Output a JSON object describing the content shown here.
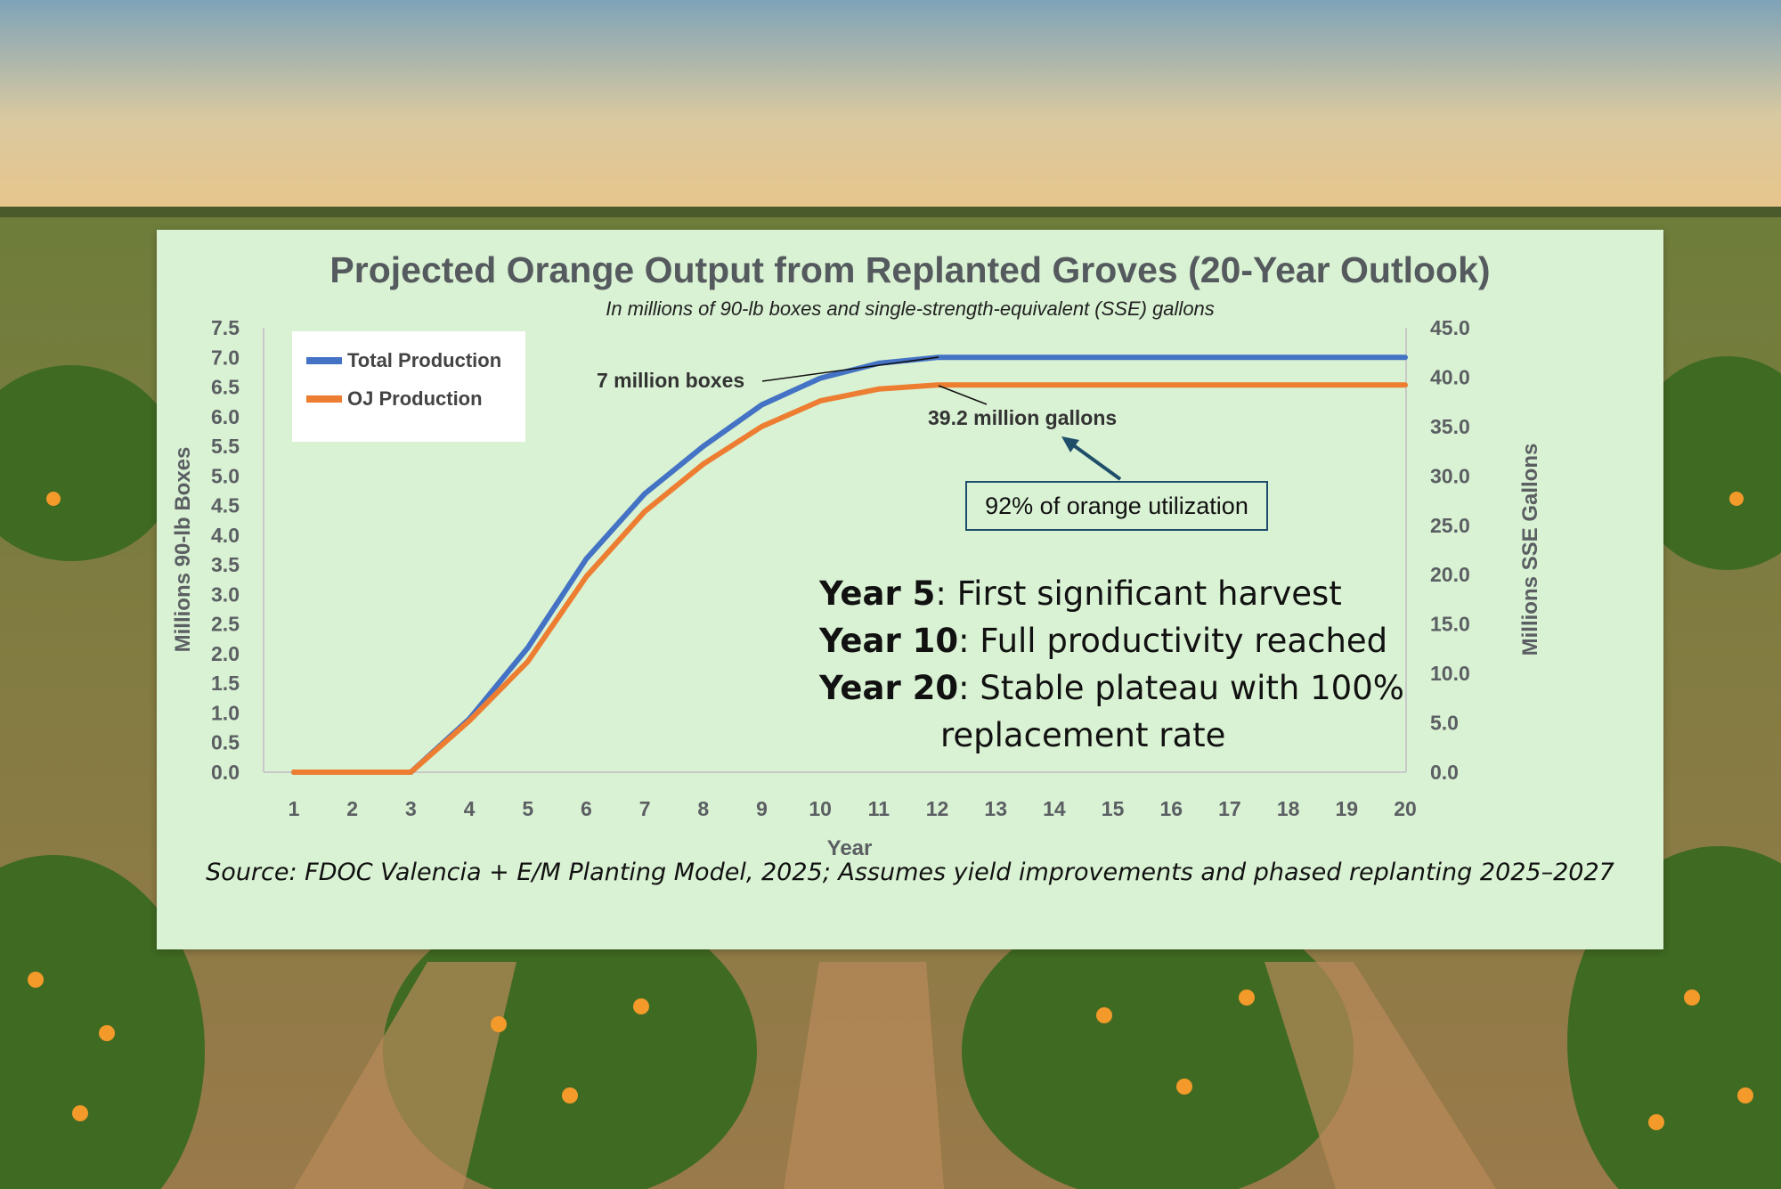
{
  "colors": {
    "total": "#4472c4",
    "oj": "#ed7d31",
    "panel": "#d9f2d3",
    "axis_text": "#5b5f63",
    "annotation_border": "#1f4e6b"
  },
  "chart_data": {
    "type": "line",
    "title": "Projected Orange Output from Replanted Groves (20-Year Outlook)",
    "subtitle": "In millions of 90-lb boxes and single-strength-equivalent (SSE) gallons",
    "xlabel": "Year",
    "ylabel_left": "Millions 90-lb Boxes",
    "ylabel_right": "Millions SSE Gallons",
    "categories": [
      1,
      2,
      3,
      4,
      5,
      6,
      7,
      8,
      9,
      10,
      11,
      12,
      13,
      14,
      15,
      16,
      17,
      18,
      19,
      20
    ],
    "ylim_left": [
      0,
      7.5
    ],
    "ylim_right": [
      0,
      45
    ],
    "yticks_left": [
      "0.0",
      "0.5",
      "1.0",
      "1.5",
      "2.0",
      "2.5",
      "3.0",
      "3.5",
      "4.0",
      "4.5",
      "5.0",
      "5.5",
      "6.0",
      "6.5",
      "7.0",
      "7.5"
    ],
    "yticks_right": [
      "0.0",
      "5.0",
      "10.0",
      "15.0",
      "20.0",
      "25.0",
      "30.0",
      "35.0",
      "40.0",
      "45.0"
    ],
    "series": [
      {
        "name": "Total Production",
        "axis": "left",
        "values": [
          0,
          0,
          0,
          0.9,
          2.1,
          3.6,
          4.7,
          5.5,
          6.2,
          6.65,
          6.9,
          7.0,
          7.0,
          7.0,
          7.0,
          7.0,
          7.0,
          7.0,
          7.0,
          7.0
        ]
      },
      {
        "name": "OJ Production",
        "axis": "right",
        "values": [
          0,
          0,
          0,
          5.2,
          11.2,
          19.8,
          26.4,
          31.2,
          35.0,
          37.6,
          38.8,
          39.2,
          39.2,
          39.2,
          39.2,
          39.2,
          39.2,
          39.2,
          39.2,
          39.2
        ]
      }
    ],
    "legend": [
      "Total Production",
      "OJ Production"
    ],
    "legend_position": "top-left",
    "annotations": {
      "boxes_callout": "7 million boxes",
      "gallons_callout": "39.2 million gallons",
      "utilization": "92% of orange utilization",
      "milestones": [
        {
          "label": "Year 5",
          "text": ": First significant harvest"
        },
        {
          "label": "Year 10",
          "text": ": Full productivity reached"
        },
        {
          "label": "Year 20",
          "text": ": Stable plateau with 100%",
          "cont": "replacement rate"
        }
      ]
    },
    "source": "Source: FDOC Valencia + E/M Planting Model, 2025; Assumes yield improvements and phased replanting 2025–2027"
  }
}
